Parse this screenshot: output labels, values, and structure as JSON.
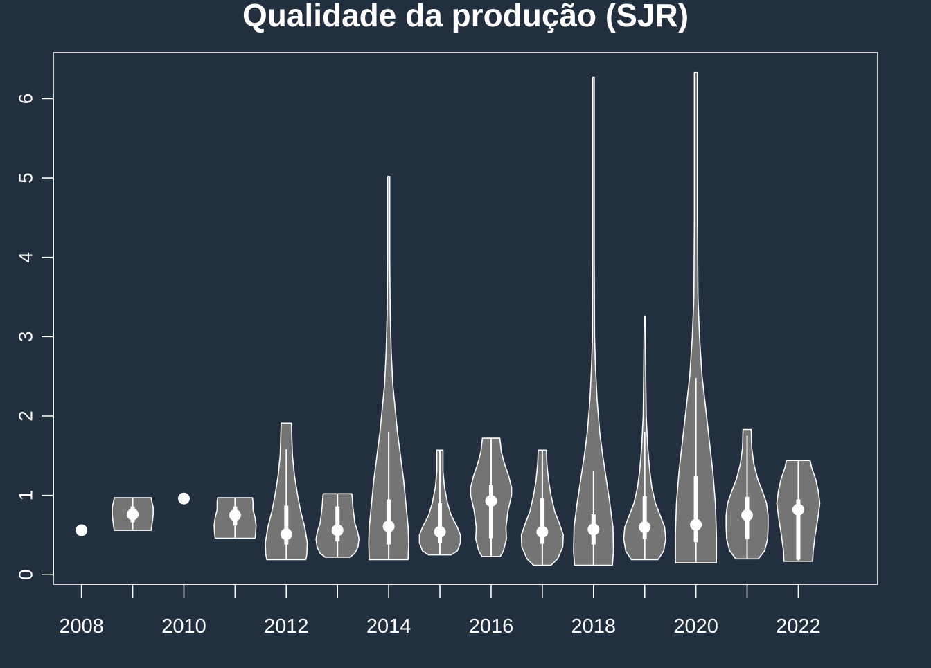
{
  "colors": {
    "background": "#222f3e",
    "foreground": "#ffffff",
    "violin_fill": "#747474"
  },
  "chart_data": {
    "type": "violin",
    "title": "Qualidade da produção (SJR)",
    "xlabel": "",
    "ylabel": "",
    "x_ticks": [
      2008,
      2009,
      2010,
      2011,
      2012,
      2013,
      2014,
      2015,
      2016,
      2017,
      2018,
      2019,
      2020,
      2021,
      2022
    ],
    "x_tick_labels": [
      "2008",
      "",
      "2010",
      "",
      "2012",
      "",
      "2014",
      "",
      "2016",
      "",
      "2018",
      "",
      "2020",
      "",
      "2022"
    ],
    "xlim": [
      2007.45,
      2023.55
    ],
    "y_ticks": [
      0,
      1,
      2,
      3,
      4,
      5,
      6
    ],
    "y_tick_labels": [
      "0",
      "1",
      "2",
      "3",
      "4",
      "5",
      "6"
    ],
    "ylim": [
      -0.12,
      6.58
    ],
    "grid": false,
    "series": [
      {
        "year": 2008,
        "min": 0.56,
        "q1": 0.56,
        "median": 0.56,
        "q3": 0.56,
        "max": 0.56,
        "whisker_low": 0.56,
        "whisker_high": 0.56,
        "profile": [
          [
            0.56,
            0
          ]
        ]
      },
      {
        "year": 2009,
        "min": 0.56,
        "q1": 0.66,
        "median": 0.76,
        "q3": 0.86,
        "max": 0.97,
        "whisker_low": 0.56,
        "whisker_high": 0.97,
        "profile": [
          [
            0.56,
            0.36
          ],
          [
            0.6,
            0.37
          ],
          [
            0.7,
            0.39
          ],
          [
            0.76,
            0.4
          ],
          [
            0.85,
            0.4
          ],
          [
            0.93,
            0.37
          ],
          [
            0.97,
            0.36
          ]
        ]
      },
      {
        "year": 2010,
        "min": 0.96,
        "q1": 0.96,
        "median": 0.96,
        "q3": 0.96,
        "max": 0.96,
        "whisker_low": 0.96,
        "whisker_high": 0.96,
        "profile": [
          [
            0.96,
            0
          ]
        ]
      },
      {
        "year": 2011,
        "min": 0.46,
        "q1": 0.62,
        "median": 0.75,
        "q3": 0.86,
        "max": 0.97,
        "whisker_low": 0.46,
        "whisker_high": 0.97,
        "profile": [
          [
            0.46,
            0.39
          ],
          [
            0.52,
            0.4
          ],
          [
            0.62,
            0.41
          ],
          [
            0.72,
            0.39
          ],
          [
            0.82,
            0.35
          ],
          [
            0.92,
            0.35
          ],
          [
            0.97,
            0.34
          ]
        ]
      },
      {
        "year": 2012,
        "min": 0.19,
        "q1": 0.38,
        "median": 0.51,
        "q3": 0.87,
        "max": 1.91,
        "whisker_low": 0.19,
        "whisker_high": 1.58,
        "profile": [
          [
            0.19,
            0.38
          ],
          [
            0.25,
            0.4
          ],
          [
            0.4,
            0.41
          ],
          [
            0.6,
            0.36
          ],
          [
            0.8,
            0.28
          ],
          [
            1.0,
            0.22
          ],
          [
            1.25,
            0.16
          ],
          [
            1.5,
            0.12
          ],
          [
            1.7,
            0.11
          ],
          [
            1.91,
            0.1
          ]
        ]
      },
      {
        "year": 2013,
        "min": 0.22,
        "q1": 0.42,
        "median": 0.56,
        "q3": 0.86,
        "max": 1.02,
        "whisker_low": 0.22,
        "whisker_high": 1.02,
        "profile": [
          [
            0.22,
            0.24
          ],
          [
            0.27,
            0.34
          ],
          [
            0.35,
            0.4
          ],
          [
            0.45,
            0.42
          ],
          [
            0.55,
            0.39
          ],
          [
            0.65,
            0.34
          ],
          [
            0.75,
            0.32
          ],
          [
            0.85,
            0.3
          ],
          [
            0.95,
            0.29
          ],
          [
            1.02,
            0.28
          ]
        ]
      },
      {
        "year": 2014,
        "min": 0.19,
        "q1": 0.38,
        "median": 0.61,
        "q3": 0.95,
        "max": 5.02,
        "whisker_low": 0.19,
        "whisker_high": 1.8,
        "profile": [
          [
            0.19,
            0.38
          ],
          [
            0.4,
            0.39
          ],
          [
            0.6,
            0.38
          ],
          [
            0.8,
            0.35
          ],
          [
            1.0,
            0.32
          ],
          [
            1.2,
            0.29
          ],
          [
            1.4,
            0.25
          ],
          [
            1.6,
            0.21
          ],
          [
            1.8,
            0.17
          ],
          [
            2.0,
            0.14
          ],
          [
            2.4,
            0.08
          ],
          [
            2.8,
            0.05
          ],
          [
            3.3,
            0.03
          ],
          [
            4.0,
            0.02
          ],
          [
            5.02,
            0.02
          ]
        ]
      },
      {
        "year": 2015,
        "min": 0.25,
        "q1": 0.4,
        "median": 0.54,
        "q3": 0.9,
        "max": 1.57,
        "whisker_low": 0.25,
        "whisker_high": 1.57,
        "profile": [
          [
            0.25,
            0.22
          ],
          [
            0.3,
            0.34
          ],
          [
            0.4,
            0.4
          ],
          [
            0.5,
            0.4
          ],
          [
            0.6,
            0.34
          ],
          [
            0.75,
            0.22
          ],
          [
            0.9,
            0.15
          ],
          [
            1.1,
            0.09
          ],
          [
            1.3,
            0.06
          ],
          [
            1.57,
            0.06
          ]
        ]
      },
      {
        "year": 2016,
        "min": 0.23,
        "q1": 0.46,
        "median": 0.93,
        "q3": 1.13,
        "max": 1.72,
        "whisker_low": 0.23,
        "whisker_high": 1.72,
        "profile": [
          [
            0.23,
            0.18
          ],
          [
            0.3,
            0.24
          ],
          [
            0.45,
            0.3
          ],
          [
            0.6,
            0.29
          ],
          [
            0.8,
            0.33
          ],
          [
            1.0,
            0.4
          ],
          [
            1.1,
            0.4
          ],
          [
            1.25,
            0.34
          ],
          [
            1.4,
            0.26
          ],
          [
            1.55,
            0.2
          ],
          [
            1.72,
            0.17
          ]
        ]
      },
      {
        "year": 2017,
        "min": 0.12,
        "q1": 0.39,
        "median": 0.54,
        "q3": 0.96,
        "max": 1.57,
        "whisker_low": 0.12,
        "whisker_high": 1.57,
        "profile": [
          [
            0.12,
            0.17
          ],
          [
            0.2,
            0.3
          ],
          [
            0.35,
            0.4
          ],
          [
            0.5,
            0.41
          ],
          [
            0.65,
            0.33
          ],
          [
            0.8,
            0.24
          ],
          [
            1.0,
            0.17
          ],
          [
            1.2,
            0.12
          ],
          [
            1.4,
            0.09
          ],
          [
            1.57,
            0.08
          ]
        ]
      },
      {
        "year": 2018,
        "min": 0.12,
        "q1": 0.38,
        "median": 0.57,
        "q3": 0.76,
        "max": 6.27,
        "whisker_low": 0.12,
        "whisker_high": 1.31,
        "profile": [
          [
            0.12,
            0.37
          ],
          [
            0.3,
            0.39
          ],
          [
            0.6,
            0.38
          ],
          [
            0.9,
            0.32
          ],
          [
            1.2,
            0.25
          ],
          [
            1.5,
            0.18
          ],
          [
            1.8,
            0.12
          ],
          [
            2.2,
            0.07
          ],
          [
            2.6,
            0.04
          ],
          [
            3.0,
            0.02
          ],
          [
            4.0,
            0.015
          ],
          [
            5.0,
            0.015
          ],
          [
            6.27,
            0.015
          ]
        ]
      },
      {
        "year": 2019,
        "min": 0.19,
        "q1": 0.45,
        "median": 0.6,
        "q3": 0.99,
        "max": 3.26,
        "whisker_low": 0.19,
        "whisker_high": 1.8,
        "profile": [
          [
            0.19,
            0.26
          ],
          [
            0.3,
            0.37
          ],
          [
            0.45,
            0.41
          ],
          [
            0.6,
            0.39
          ],
          [
            0.75,
            0.3
          ],
          [
            0.9,
            0.21
          ],
          [
            1.1,
            0.14
          ],
          [
            1.3,
            0.1
          ],
          [
            1.6,
            0.06
          ],
          [
            2.0,
            0.03
          ],
          [
            2.5,
            0.02
          ],
          [
            3.26,
            0.01
          ]
        ]
      },
      {
        "year": 2020,
        "min": 0.15,
        "q1": 0.41,
        "median": 0.63,
        "q3": 1.24,
        "max": 6.33,
        "whisker_low": 0.15,
        "whisker_high": 2.48,
        "profile": [
          [
            0.15,
            0.4
          ],
          [
            0.5,
            0.4
          ],
          [
            0.9,
            0.38
          ],
          [
            1.3,
            0.33
          ],
          [
            1.7,
            0.26
          ],
          [
            2.1,
            0.19
          ],
          [
            2.5,
            0.12
          ],
          [
            3.0,
            0.07
          ],
          [
            3.5,
            0.04
          ],
          [
            4.5,
            0.03
          ],
          [
            5.5,
            0.03
          ],
          [
            6.33,
            0.03
          ]
        ]
      },
      {
        "year": 2021,
        "min": 0.2,
        "q1": 0.45,
        "median": 0.75,
        "q3": 0.98,
        "max": 1.83,
        "whisker_low": 0.2,
        "whisker_high": 1.75,
        "profile": [
          [
            0.2,
            0.22
          ],
          [
            0.3,
            0.34
          ],
          [
            0.45,
            0.4
          ],
          [
            0.6,
            0.41
          ],
          [
            0.75,
            0.41
          ],
          [
            0.9,
            0.38
          ],
          [
            1.05,
            0.3
          ],
          [
            1.2,
            0.21
          ],
          [
            1.4,
            0.13
          ],
          [
            1.6,
            0.09
          ],
          [
            1.83,
            0.08
          ]
        ]
      },
      {
        "year": 2022,
        "min": 0.17,
        "q1": 0.19,
        "median": 0.82,
        "q3": 0.95,
        "max": 1.44,
        "whisker_low": 0.17,
        "whisker_high": 1.44,
        "profile": [
          [
            0.17,
            0.28
          ],
          [
            0.3,
            0.29
          ],
          [
            0.5,
            0.33
          ],
          [
            0.7,
            0.38
          ],
          [
            0.9,
            0.42
          ],
          [
            1.05,
            0.39
          ],
          [
            1.2,
            0.34
          ],
          [
            1.35,
            0.26
          ],
          [
            1.44,
            0.23
          ]
        ]
      }
    ]
  }
}
